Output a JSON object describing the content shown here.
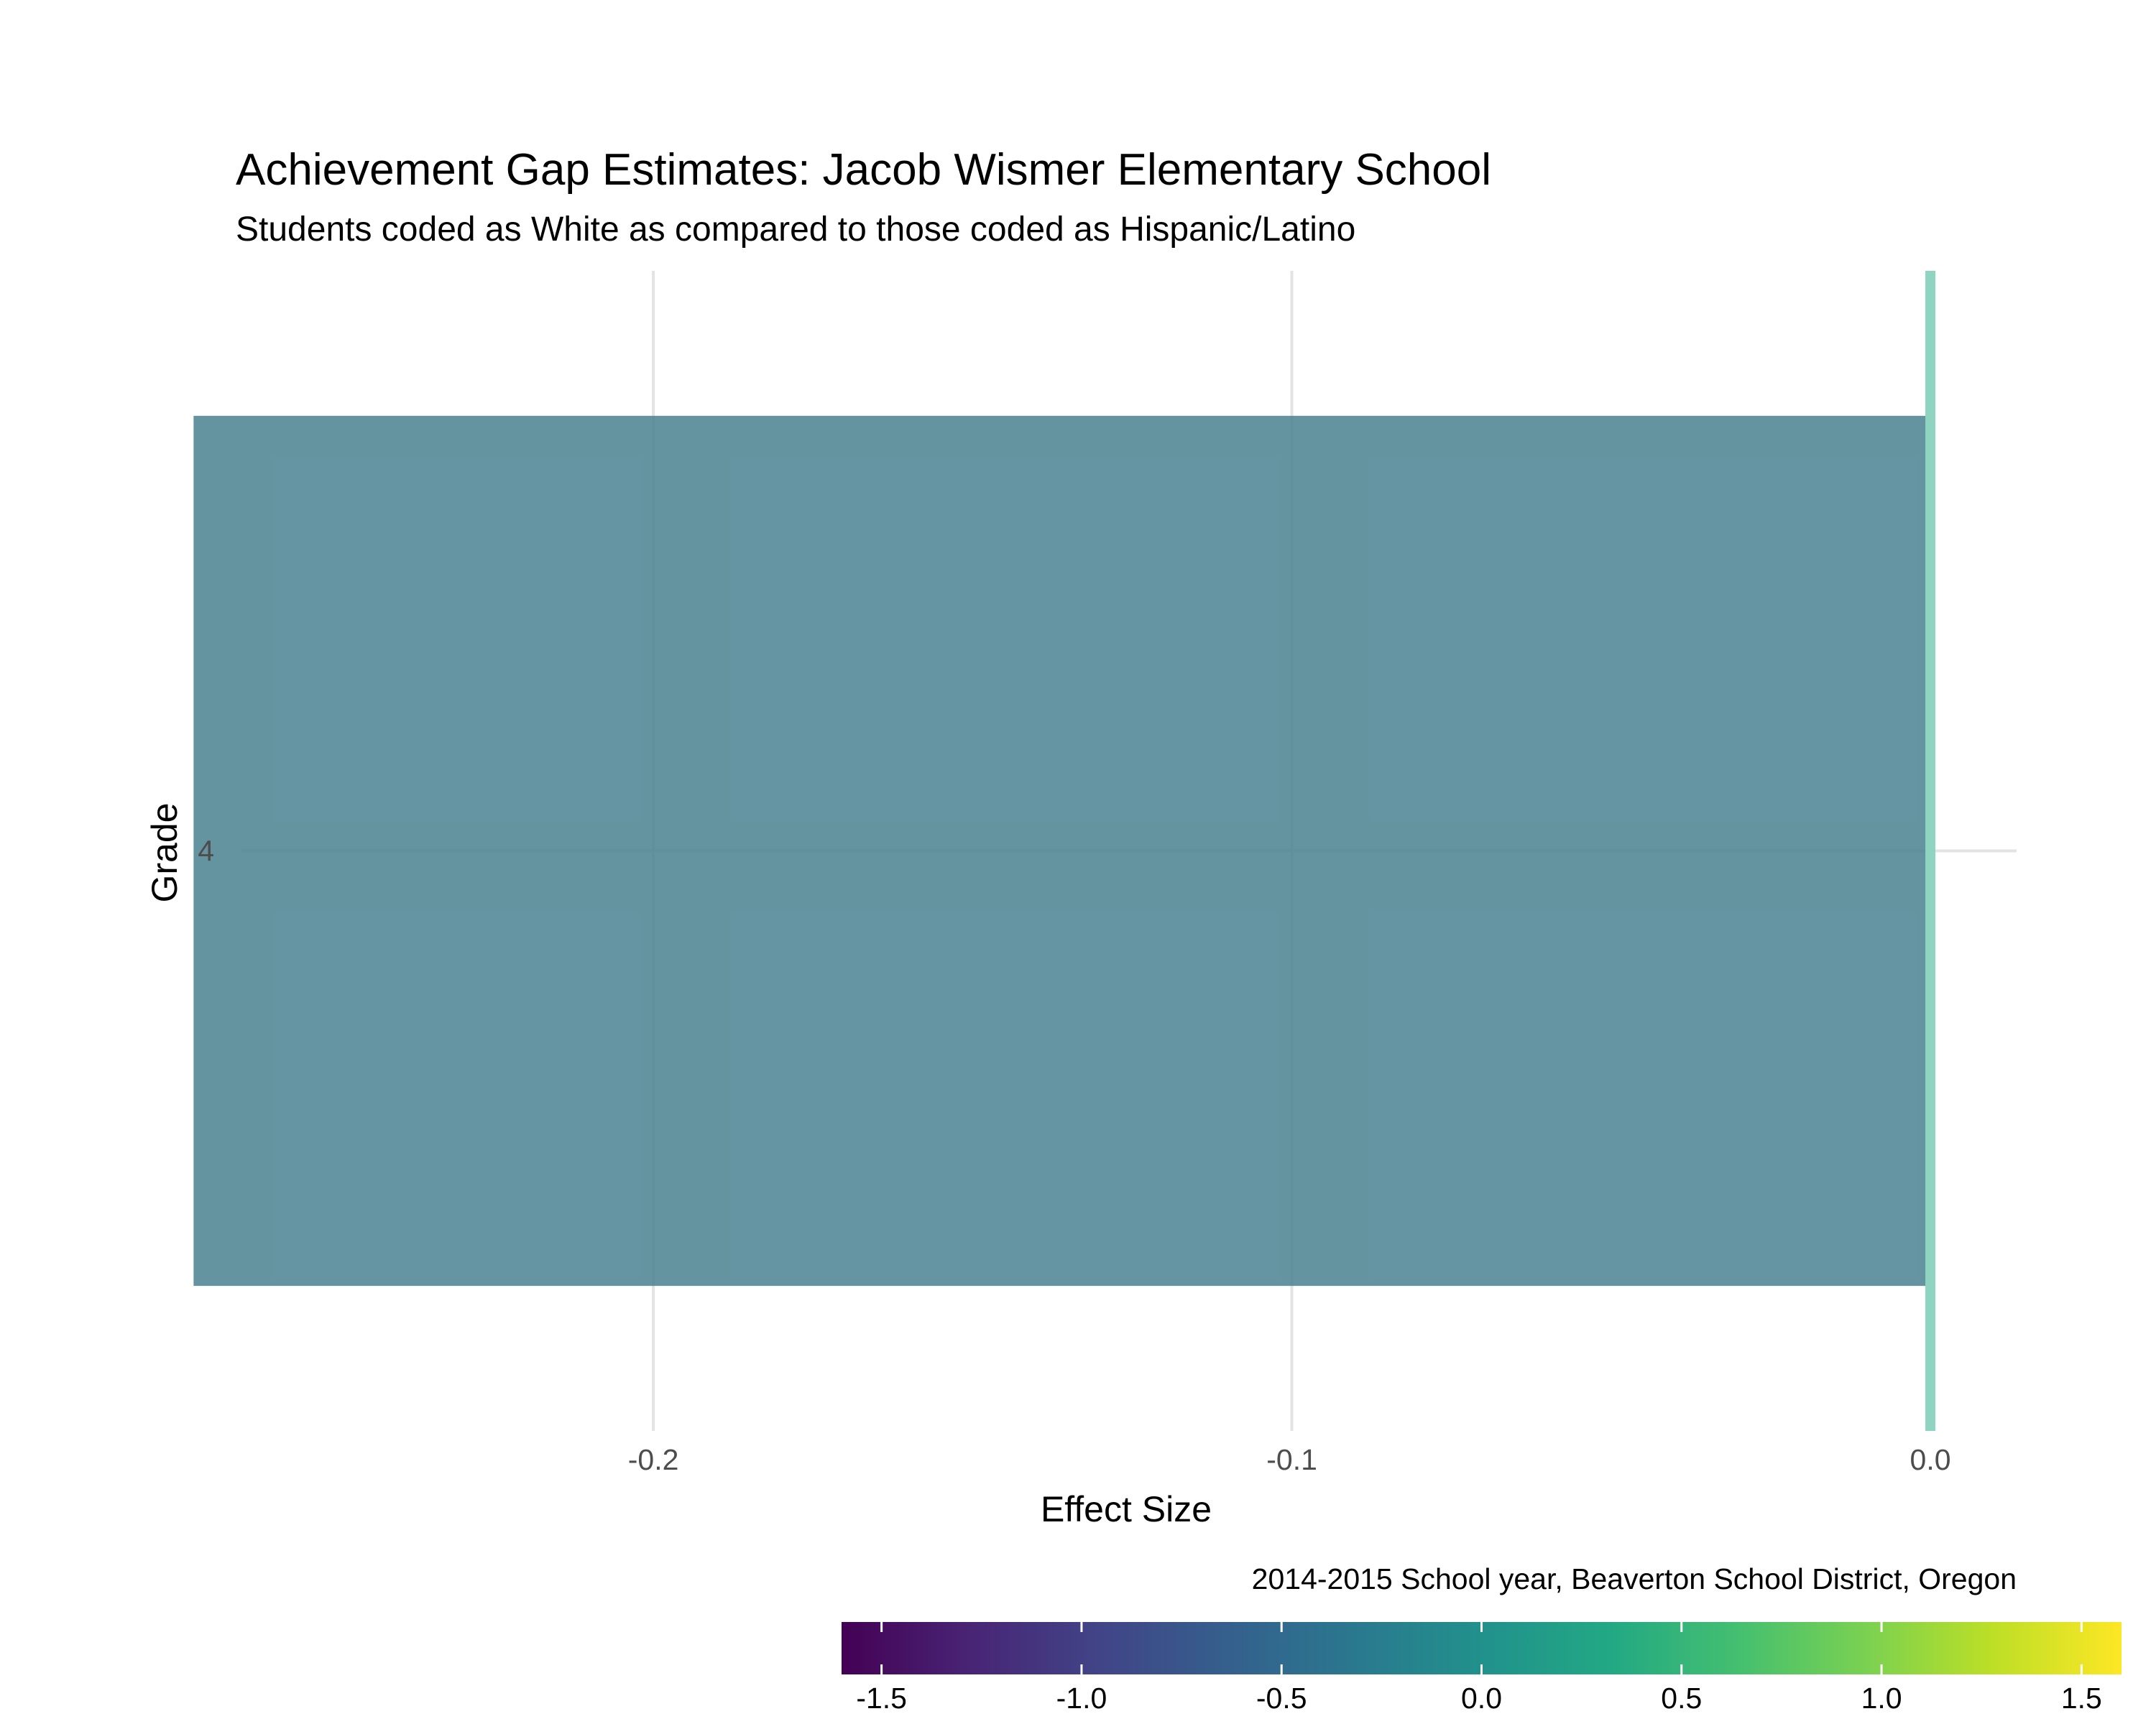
{
  "chart_data": {
    "type": "bar",
    "orientation": "horizontal",
    "title": "Achievement Gap Estimates: Jacob Wismer Elementary School",
    "subtitle": "Students coded as White as compared to those coded as Hispanic/Latino",
    "xlabel": "Effect Size",
    "ylabel": "Grade",
    "categories": [
      "4"
    ],
    "values": [
      -0.272
    ],
    "reference_line": 0.0,
    "xlim": [
      -0.2645,
      0.0135
    ],
    "xticks": [
      -0.2,
      -0.1,
      0.0
    ],
    "xtick_labels": [
      "-0.2",
      "-0.1",
      "0.0"
    ],
    "grid": true,
    "caption": "2014-2015 School year, Beaverton School District, Oregon",
    "colorbar": {
      "palette": "viridis",
      "range": [
        -1.6,
        1.6
      ],
      "ticks": [
        -1.5,
        -1.0,
        -0.5,
        0.0,
        0.5,
        1.0,
        1.5
      ],
      "tick_labels": [
        "-1.5",
        "-1.0",
        "-0.5",
        "0.0",
        "0.5",
        "1.0",
        "1.5"
      ],
      "position": "bottom"
    },
    "colors": {
      "bar": "#4a8191",
      "reference_line": "#8fd4c0",
      "grid": "#e3e3e3"
    }
  }
}
